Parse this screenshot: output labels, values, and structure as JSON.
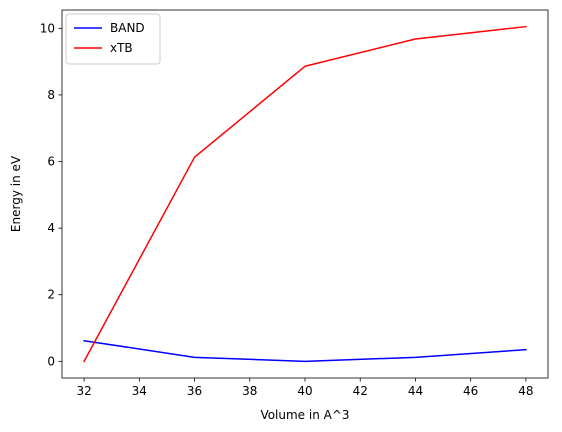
{
  "chart_data": {
    "type": "line",
    "title": "",
    "xlabel": "Volume in A^3",
    "ylabel": "Energy in eV",
    "x": [
      32,
      36,
      40,
      44,
      48
    ],
    "series": [
      {
        "name": "BAND",
        "color": "#0000ff",
        "values": [
          0.62,
          0.12,
          0.0,
          0.12,
          0.35
        ]
      },
      {
        "name": "xTB",
        "color": "#ff0000",
        "values": [
          0.0,
          6.13,
          8.86,
          9.68,
          10.05
        ]
      }
    ],
    "xlim": [
      31.2,
      48.8
    ],
    "ylim": [
      -0.5,
      10.55
    ],
    "xticks": [
      32,
      34,
      36,
      38,
      40,
      42,
      44,
      46,
      48
    ],
    "yticks": [
      0,
      2,
      4,
      6,
      8,
      10
    ],
    "grid": false,
    "legend_position": "top-left"
  }
}
